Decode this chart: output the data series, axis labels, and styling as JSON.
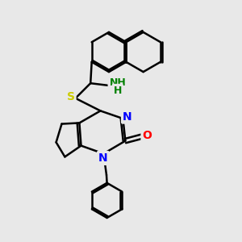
{
  "bg_color": "#e8e8e8",
  "bond_color": "#000000",
  "bond_width": 1.8,
  "atom_colors": {
    "N": "#0000ff",
    "O": "#ff0000",
    "S": "#cccc00",
    "NH2": "#008000"
  },
  "fig_width": 3.0,
  "fig_height": 3.0,
  "dpi": 100
}
